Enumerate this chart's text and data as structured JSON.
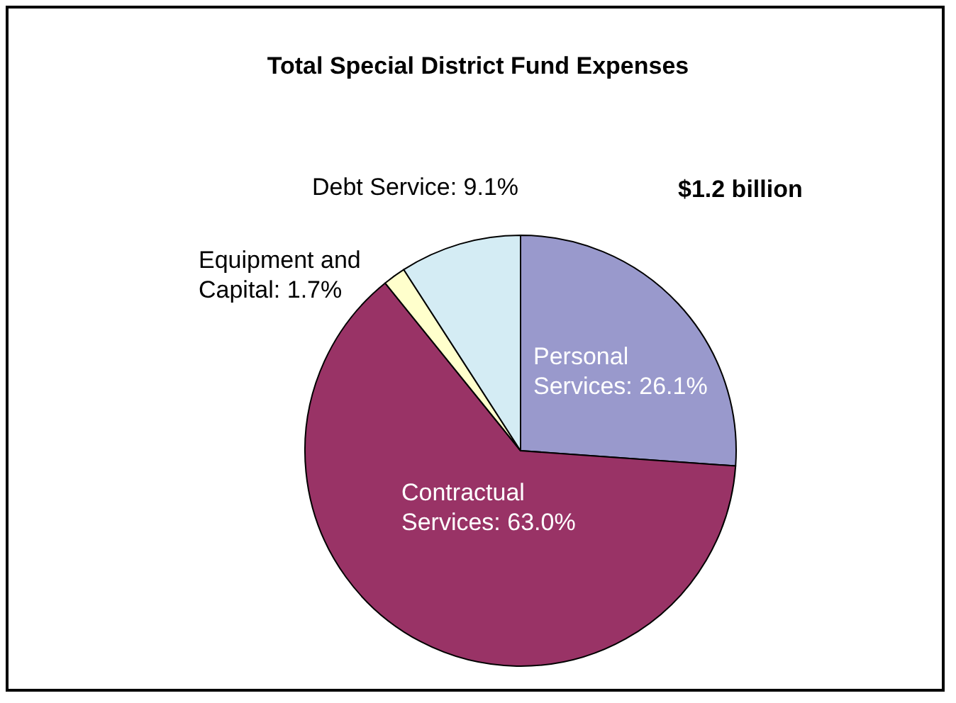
{
  "chart_data": {
    "type": "pie",
    "title": "Total Special District Fund Expenses",
    "categories": [
      "Personal Services",
      "Contractual Services",
      "Equipment and Capital",
      "Debt Service"
    ],
    "values": [
      26.1,
      63.0,
      1.7,
      9.1
    ],
    "colors": [
      "#9999cc",
      "#993366",
      "#ffffcc",
      "#d4ecf4"
    ],
    "value_labels": [
      "26.1%",
      "63.0%",
      "1.7%",
      "9.1%"
    ],
    "annotations": [
      "$1.2 billion"
    ]
  }
}
